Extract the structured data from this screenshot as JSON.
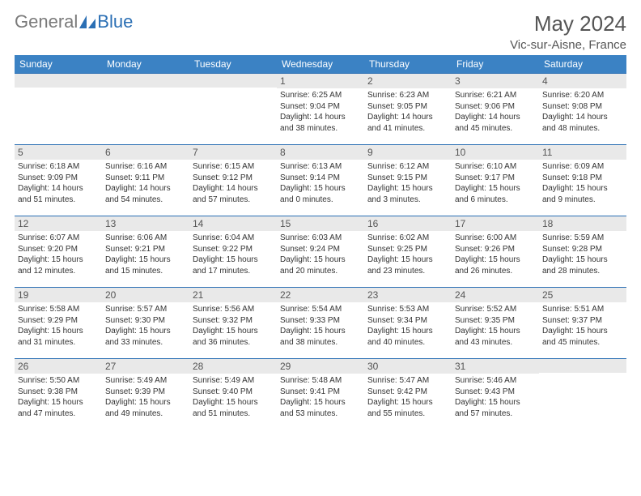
{
  "logo": {
    "text_gray": "General",
    "text_blue": "Blue"
  },
  "title": "May 2024",
  "location": "Vic-sur-Aisne, France",
  "colors": {
    "header_bg": "#3b82c4",
    "header_text": "#ffffff",
    "daynum_bg": "#e9e9e9",
    "rule": "#2b6fb4",
    "logo_gray": "#7a7a7a",
    "logo_blue": "#2b6fb4",
    "body_text": "#333333",
    "title_text": "#555555",
    "page_bg": "#ffffff"
  },
  "day_headers": [
    "Sunday",
    "Monday",
    "Tuesday",
    "Wednesday",
    "Thursday",
    "Friday",
    "Saturday"
  ],
  "weeks": [
    [
      null,
      null,
      null,
      {
        "n": "1",
        "sr": "6:25 AM",
        "ss": "9:04 PM",
        "dl": "14 hours and 38 minutes."
      },
      {
        "n": "2",
        "sr": "6:23 AM",
        "ss": "9:05 PM",
        "dl": "14 hours and 41 minutes."
      },
      {
        "n": "3",
        "sr": "6:21 AM",
        "ss": "9:06 PM",
        "dl": "14 hours and 45 minutes."
      },
      {
        "n": "4",
        "sr": "6:20 AM",
        "ss": "9:08 PM",
        "dl": "14 hours and 48 minutes."
      }
    ],
    [
      {
        "n": "5",
        "sr": "6:18 AM",
        "ss": "9:09 PM",
        "dl": "14 hours and 51 minutes."
      },
      {
        "n": "6",
        "sr": "6:16 AM",
        "ss": "9:11 PM",
        "dl": "14 hours and 54 minutes."
      },
      {
        "n": "7",
        "sr": "6:15 AM",
        "ss": "9:12 PM",
        "dl": "14 hours and 57 minutes."
      },
      {
        "n": "8",
        "sr": "6:13 AM",
        "ss": "9:14 PM",
        "dl": "15 hours and 0 minutes."
      },
      {
        "n": "9",
        "sr": "6:12 AM",
        "ss": "9:15 PM",
        "dl": "15 hours and 3 minutes."
      },
      {
        "n": "10",
        "sr": "6:10 AM",
        "ss": "9:17 PM",
        "dl": "15 hours and 6 minutes."
      },
      {
        "n": "11",
        "sr": "6:09 AM",
        "ss": "9:18 PM",
        "dl": "15 hours and 9 minutes."
      }
    ],
    [
      {
        "n": "12",
        "sr": "6:07 AM",
        "ss": "9:20 PM",
        "dl": "15 hours and 12 minutes."
      },
      {
        "n": "13",
        "sr": "6:06 AM",
        "ss": "9:21 PM",
        "dl": "15 hours and 15 minutes."
      },
      {
        "n": "14",
        "sr": "6:04 AM",
        "ss": "9:22 PM",
        "dl": "15 hours and 17 minutes."
      },
      {
        "n": "15",
        "sr": "6:03 AM",
        "ss": "9:24 PM",
        "dl": "15 hours and 20 minutes."
      },
      {
        "n": "16",
        "sr": "6:02 AM",
        "ss": "9:25 PM",
        "dl": "15 hours and 23 minutes."
      },
      {
        "n": "17",
        "sr": "6:00 AM",
        "ss": "9:26 PM",
        "dl": "15 hours and 26 minutes."
      },
      {
        "n": "18",
        "sr": "5:59 AM",
        "ss": "9:28 PM",
        "dl": "15 hours and 28 minutes."
      }
    ],
    [
      {
        "n": "19",
        "sr": "5:58 AM",
        "ss": "9:29 PM",
        "dl": "15 hours and 31 minutes."
      },
      {
        "n": "20",
        "sr": "5:57 AM",
        "ss": "9:30 PM",
        "dl": "15 hours and 33 minutes."
      },
      {
        "n": "21",
        "sr": "5:56 AM",
        "ss": "9:32 PM",
        "dl": "15 hours and 36 minutes."
      },
      {
        "n": "22",
        "sr": "5:54 AM",
        "ss": "9:33 PM",
        "dl": "15 hours and 38 minutes."
      },
      {
        "n": "23",
        "sr": "5:53 AM",
        "ss": "9:34 PM",
        "dl": "15 hours and 40 minutes."
      },
      {
        "n": "24",
        "sr": "5:52 AM",
        "ss": "9:35 PM",
        "dl": "15 hours and 43 minutes."
      },
      {
        "n": "25",
        "sr": "5:51 AM",
        "ss": "9:37 PM",
        "dl": "15 hours and 45 minutes."
      }
    ],
    [
      {
        "n": "26",
        "sr": "5:50 AM",
        "ss": "9:38 PM",
        "dl": "15 hours and 47 minutes."
      },
      {
        "n": "27",
        "sr": "5:49 AM",
        "ss": "9:39 PM",
        "dl": "15 hours and 49 minutes."
      },
      {
        "n": "28",
        "sr": "5:49 AM",
        "ss": "9:40 PM",
        "dl": "15 hours and 51 minutes."
      },
      {
        "n": "29",
        "sr": "5:48 AM",
        "ss": "9:41 PM",
        "dl": "15 hours and 53 minutes."
      },
      {
        "n": "30",
        "sr": "5:47 AM",
        "ss": "9:42 PM",
        "dl": "15 hours and 55 minutes."
      },
      {
        "n": "31",
        "sr": "5:46 AM",
        "ss": "9:43 PM",
        "dl": "15 hours and 57 minutes."
      },
      null
    ]
  ],
  "labels": {
    "sunrise": "Sunrise:",
    "sunset": "Sunset:",
    "daylight": "Daylight:"
  }
}
